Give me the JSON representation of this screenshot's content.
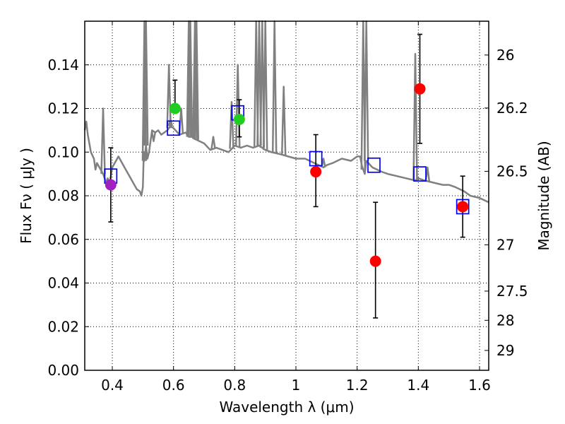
{
  "chart_data": {
    "type": "scatter",
    "xlabel": "Wavelength  λ (μm)",
    "ylabel": "Flux  Fν  ( μJy )",
    "y2label": "Magnitude (AB)",
    "xlim": [
      0.31,
      1.63
    ],
    "ylim": [
      0.0,
      0.16
    ],
    "grid": true,
    "x_ticks": [
      0.4,
      0.6,
      0.8,
      1.0,
      1.2,
      1.4,
      1.6
    ],
    "x_tick_labels": [
      "0.4",
      "0.6",
      "0.8",
      "1",
      "1.2",
      "1.4",
      "1.6"
    ],
    "y_ticks": [
      0.0,
      0.02,
      0.04,
      0.06,
      0.08,
      0.1,
      0.12,
      0.14
    ],
    "y_tick_labels": [
      "0.00",
      "0.02",
      "0.04",
      "0.06",
      "0.08",
      "0.10",
      "0.12",
      "0.14"
    ],
    "mag_ticks": [
      {
        "label": "26",
        "flux": 0.1445
      },
      {
        "label": "26.2",
        "flux": 0.1202
      },
      {
        "label": "26.5",
        "flux": 0.0912
      },
      {
        "label": "27",
        "flux": 0.0575
      },
      {
        "label": "27.5",
        "flux": 0.0363
      },
      {
        "label": "28",
        "flux": 0.0229
      },
      {
        "label": "29",
        "flux": 0.0091
      }
    ],
    "model_spectrum": {
      "color": "#808080",
      "x": [
        0.31,
        0.315,
        0.32,
        0.33,
        0.34,
        0.345,
        0.35,
        0.37,
        0.38,
        0.385,
        0.39,
        0.4,
        0.42,
        0.44,
        0.46,
        0.48,
        0.49,
        0.495,
        0.5,
        0.503,
        0.505,
        0.51,
        0.515,
        0.52,
        0.53,
        0.54,
        0.55,
        0.56,
        0.58,
        0.59,
        0.6,
        0.62,
        0.64,
        0.65,
        0.66,
        0.67,
        0.7,
        0.72,
        0.74,
        0.76,
        0.78,
        0.8,
        0.82,
        0.84,
        0.86,
        0.88,
        0.9,
        0.92,
        0.95,
        1.0,
        1.03,
        1.06,
        1.09,
        1.1,
        1.12,
        1.15,
        1.18,
        1.2,
        1.21,
        1.215,
        1.22,
        1.225,
        1.23,
        1.25,
        1.28,
        1.3,
        1.33,
        1.36,
        1.39,
        1.4,
        1.42,
        1.45,
        1.48,
        1.5,
        1.52,
        1.55,
        1.57,
        1.6,
        1.63
      ],
      "y": [
        0.11,
        0.114,
        0.108,
        0.1,
        0.097,
        0.092,
        0.095,
        0.09,
        0.086,
        0.088,
        0.085,
        0.093,
        0.098,
        0.093,
        0.088,
        0.083,
        0.082,
        0.08,
        0.084,
        0.1,
        0.096,
        0.103,
        0.097,
        0.1,
        0.11,
        0.109,
        0.11,
        0.108,
        0.11,
        0.112,
        0.111,
        0.108,
        0.109,
        0.107,
        0.107,
        0.106,
        0.104,
        0.101,
        0.102,
        0.101,
        0.1,
        0.103,
        0.102,
        0.103,
        0.102,
        0.103,
        0.101,
        0.1,
        0.099,
        0.097,
        0.097,
        0.095,
        0.093,
        0.094,
        0.095,
        0.097,
        0.096,
        0.098,
        0.098,
        0.094,
        0.092,
        0.09,
        0.096,
        0.093,
        0.091,
        0.09,
        0.089,
        0.088,
        0.087,
        0.088,
        0.087,
        0.086,
        0.085,
        0.085,
        0.084,
        0.082,
        0.08,
        0.079,
        0.077
      ]
    },
    "emission_lines": [
      {
        "x": 0.37,
        "peak": 0.12
      },
      {
        "x": 0.505,
        "peak": 0.16
      },
      {
        "x": 0.51,
        "peak": 0.16
      },
      {
        "x": 0.535,
        "peak": 0.105
      },
      {
        "x": 0.585,
        "peak": 0.14
      },
      {
        "x": 0.59,
        "peak": 0.115
      },
      {
        "x": 0.625,
        "peak": 0.12
      },
      {
        "x": 0.65,
        "peak": 0.16
      },
      {
        "x": 0.655,
        "peak": 0.16
      },
      {
        "x": 0.67,
        "peak": 0.16
      },
      {
        "x": 0.675,
        "peak": 0.16
      },
      {
        "x": 0.73,
        "peak": 0.107
      },
      {
        "x": 0.79,
        "peak": 0.123
      },
      {
        "x": 0.81,
        "peak": 0.14
      },
      {
        "x": 0.87,
        "peak": 0.16
      },
      {
        "x": 0.88,
        "peak": 0.16
      },
      {
        "x": 0.89,
        "peak": 0.16
      },
      {
        "x": 0.9,
        "peak": 0.16
      },
      {
        "x": 0.93,
        "peak": 0.16
      },
      {
        "x": 0.96,
        "peak": 0.13
      },
      {
        "x": 1.09,
        "peak": 0.097
      },
      {
        "x": 1.22,
        "peak": 0.16
      },
      {
        "x": 1.23,
        "peak": 0.16
      },
      {
        "x": 1.39,
        "peak": 0.145
      },
      {
        "x": 1.43,
        "peak": 0.093
      }
    ],
    "model_photometry": {
      "color": "#0000ff",
      "x": [
        0.395,
        0.6,
        0.81,
        1.065,
        1.255,
        1.405,
        1.545
      ],
      "y": [
        0.089,
        0.111,
        0.118,
        0.097,
        0.094,
        0.09,
        0.075
      ]
    },
    "observed_points": [
      {
        "x": 0.395,
        "y": 0.085,
        "err_low": 0.068,
        "err_high": 0.102,
        "color": "#a020c0"
      },
      {
        "x": 0.605,
        "y": 0.12,
        "err_low": null,
        "err_high": 0.133,
        "color": "#22cc22"
      },
      {
        "x": 0.815,
        "y": 0.115,
        "err_low": 0.107,
        "err_high": 0.124,
        "color": "#22cc22"
      },
      {
        "x": 1.065,
        "y": 0.091,
        "err_low": 0.075,
        "err_high": 0.108,
        "color": "#ff0000"
      },
      {
        "x": 1.26,
        "y": 0.05,
        "err_low": 0.024,
        "err_high": 0.077,
        "color": "#ff0000"
      },
      {
        "x": 1.405,
        "y": 0.129,
        "err_low": 0.104,
        "err_high": 0.154,
        "color": "#ff0000"
      },
      {
        "x": 1.545,
        "y": 0.075,
        "err_low": 0.061,
        "err_high": 0.089,
        "color": "#ff0000"
      }
    ]
  }
}
